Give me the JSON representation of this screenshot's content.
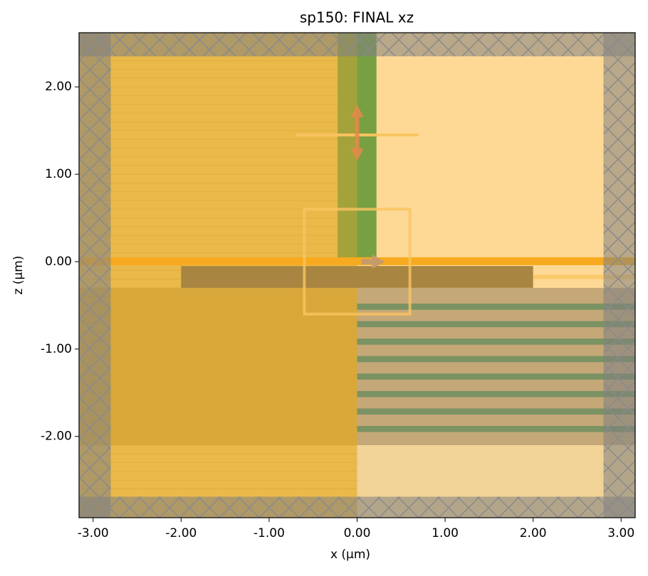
{
  "chart_data": {
    "type": "simulation",
    "title": "sp150: FINAL xz",
    "x_label": "x (µm)",
    "y_label": "z (µm)",
    "xlim": [
      -3.16,
      3.16
    ],
    "ylim": [
      -2.93,
      2.62
    ],
    "xticks": [
      {
        "value": -3,
        "label": "-3.00"
      },
      {
        "value": -2,
        "label": "-2.00"
      },
      {
        "value": -1,
        "label": "-1.00"
      },
      {
        "value": 0,
        "label": "0.00"
      },
      {
        "value": 1,
        "label": "1.00"
      },
      {
        "value": 2,
        "label": "2.00"
      },
      {
        "value": 3,
        "label": "3.00"
      }
    ],
    "yticks": [
      {
        "value": -2,
        "label": "-2.00"
      },
      {
        "value": -1,
        "label": "-1.00"
      },
      {
        "value": 0,
        "label": "0.00"
      },
      {
        "value": 1,
        "label": "1.00"
      },
      {
        "value": 2,
        "label": "2.00"
      }
    ]
  }
}
